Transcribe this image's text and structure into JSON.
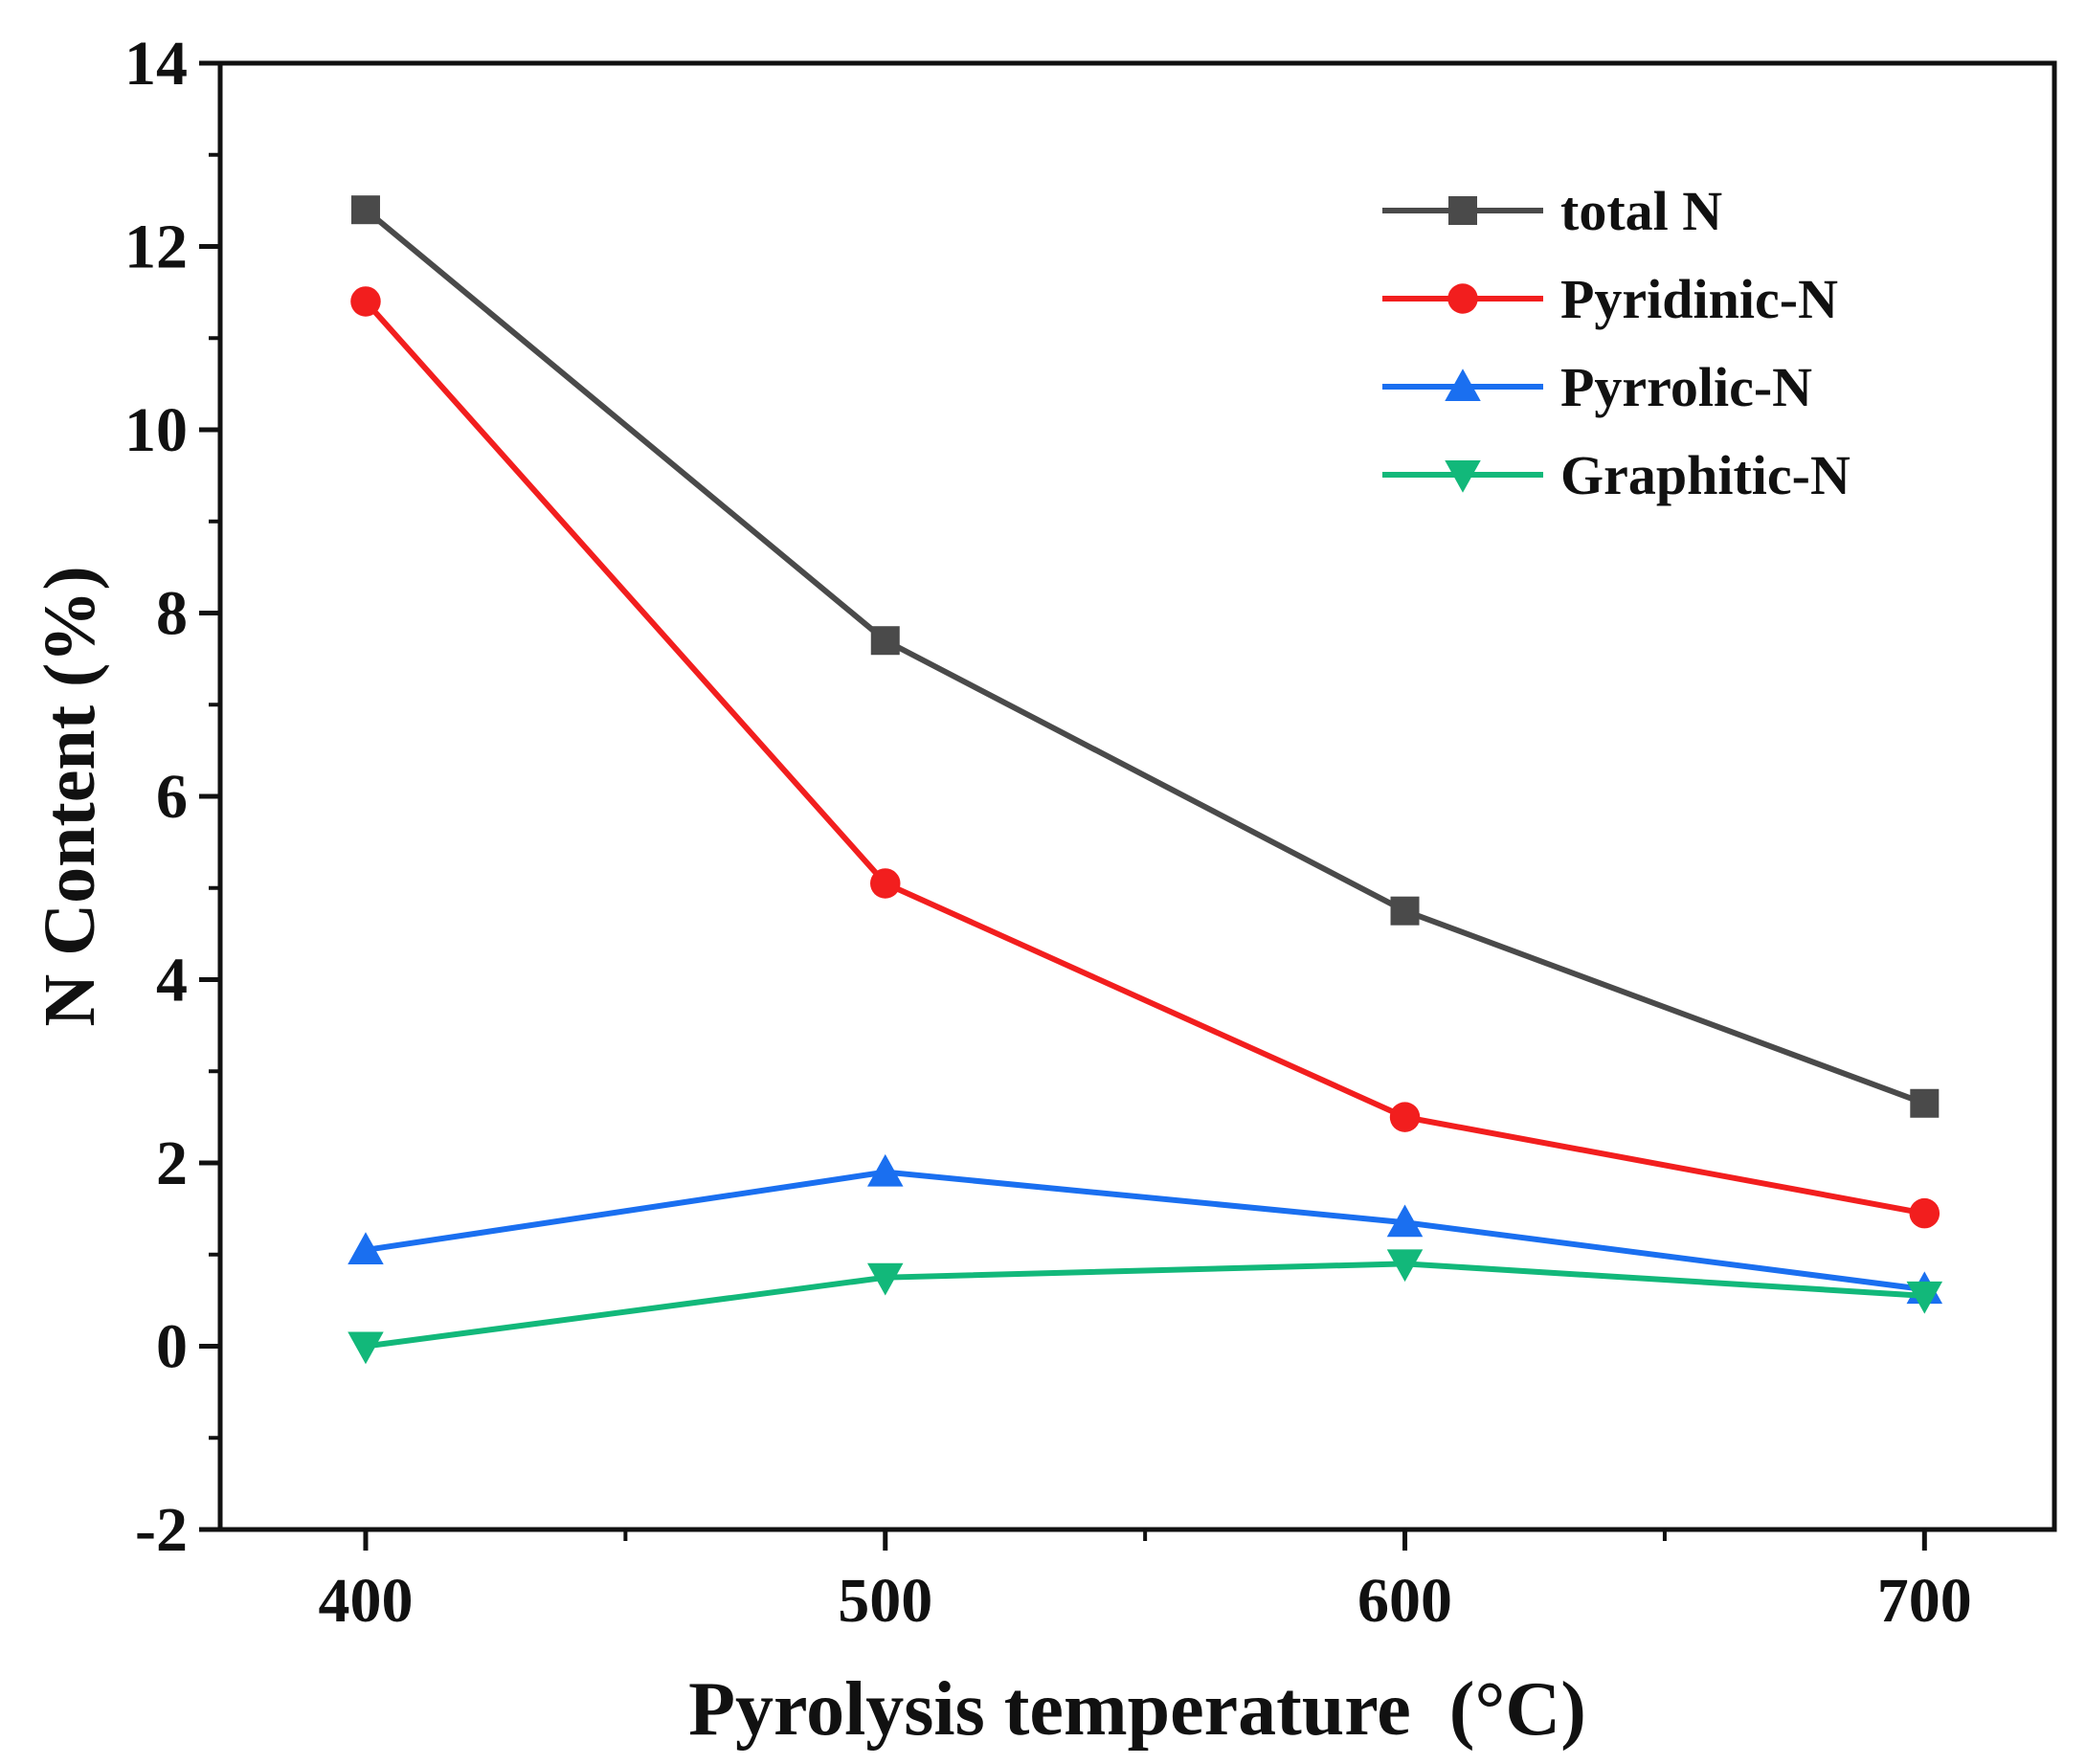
{
  "chart_data": {
    "type": "line",
    "title": "",
    "xlabel": "Pyrolysis temperature  (°C)",
    "ylabel": "N Content (%)",
    "x": [
      400,
      500,
      600,
      700
    ],
    "xlim": [
      372,
      725
    ],
    "ylim": [
      -2,
      14
    ],
    "xticks": [
      400,
      500,
      600,
      700
    ],
    "xtick_labels": [
      "400",
      "500",
      "600",
      "700"
    ],
    "yticks": [
      -2,
      0,
      2,
      4,
      6,
      8,
      10,
      12,
      14
    ],
    "ytick_labels": [
      "-2",
      "0",
      "2",
      "4",
      "6",
      "8",
      "10",
      "12",
      "14"
    ],
    "grid": false,
    "legend_position": "top-right",
    "series": [
      {
        "name": "total N",
        "values": [
          12.4,
          7.7,
          4.75,
          2.65
        ],
        "color": "#4a4a4a",
        "marker": "square"
      },
      {
        "name": "Pyridinic-N",
        "values": [
          11.4,
          5.05,
          2.5,
          1.45
        ],
        "color": "#f21e1e",
        "marker": "circle"
      },
      {
        "name": "Pyrrolic-N",
        "values": [
          1.05,
          1.9,
          1.35,
          0.62
        ],
        "color": "#1a6ff0",
        "marker": "triangle-up"
      },
      {
        "name": "Graphitic-N",
        "values": [
          0.0,
          0.75,
          0.9,
          0.55
        ],
        "color": "#12b87a",
        "marker": "triangle-down"
      }
    ]
  }
}
